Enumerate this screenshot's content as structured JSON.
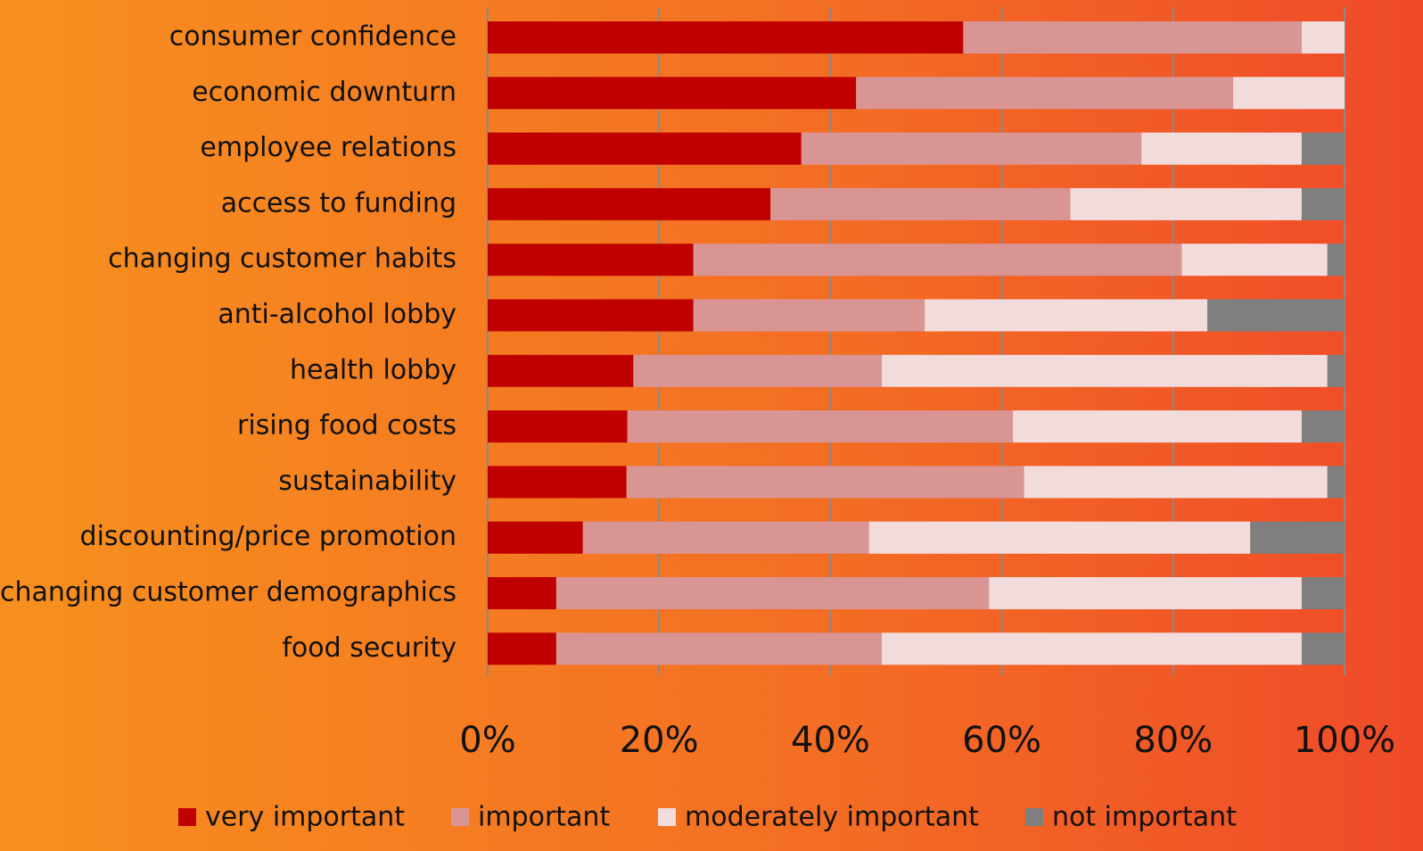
{
  "chart_data": {
    "type": "stacked_bar_horizontal",
    "categories": [
      "consumer confidence",
      "economic downturn",
      "employee relations",
      "access to funding",
      "changing customer habits",
      "anti-alcohol lobby",
      "health lobby",
      "rising food costs",
      "sustainability",
      "discounting/price promotion",
      "changing customer demographics",
      "food security"
    ],
    "series": [
      {
        "name": "very important",
        "color": "#c00000",
        "values": [
          55.5,
          43,
          36.6,
          33,
          24,
          24,
          17,
          16.3,
          16.2,
          11.1,
          8,
          8
        ]
      },
      {
        "name": "important",
        "color": "#d99594",
        "values": [
          39.5,
          44,
          39.7,
          35,
          57,
          27,
          29,
          45,
          46.4,
          33.4,
          50.5,
          38
        ]
      },
      {
        "name": "moderately important",
        "color": "#f2dcdb",
        "values": [
          5,
          13,
          18.7,
          27,
          17,
          33,
          52,
          33.7,
          35.4,
          44.5,
          36.5,
          49
        ]
      },
      {
        "name": "not important",
        "color": "#7f7f7f",
        "values": [
          0,
          0,
          5,
          5,
          2,
          16,
          2,
          5,
          2,
          11,
          5,
          5
        ]
      }
    ],
    "xlim": [
      0,
      100
    ],
    "xticks": [
      {
        "value": 0,
        "label": "0%"
      },
      {
        "value": 20,
        "label": "20%"
      },
      {
        "value": 40,
        "label": "40%"
      },
      {
        "value": 60,
        "label": "60%"
      },
      {
        "value": 80,
        "label": "80%"
      },
      {
        "value": 100,
        "label": "100%"
      }
    ],
    "grid": true,
    "legend": "bottom"
  }
}
